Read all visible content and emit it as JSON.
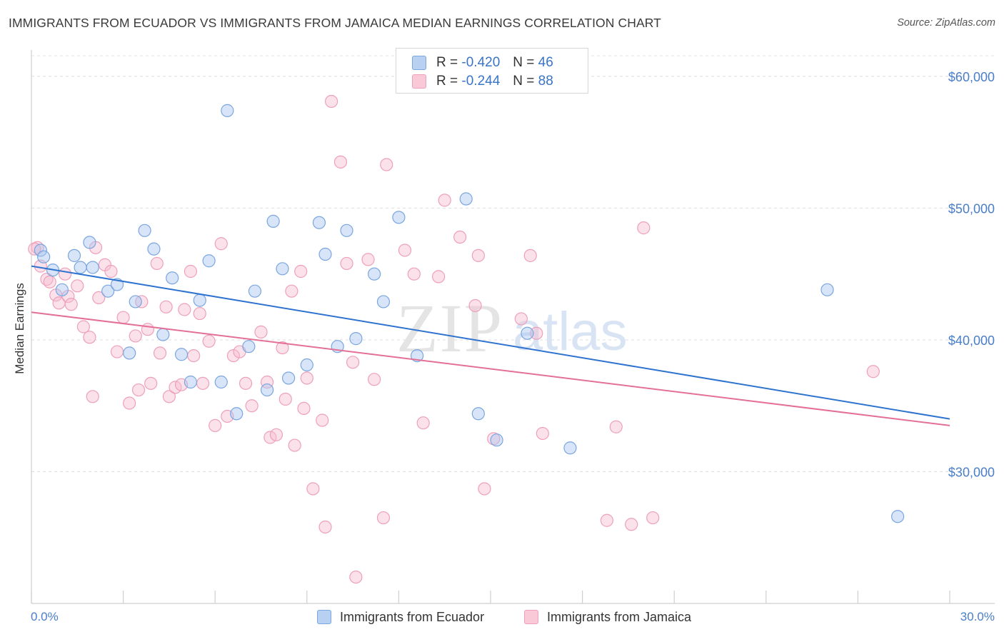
{
  "header": {
    "title": "IMMIGRANTS FROM ECUADOR VS IMMIGRANTS FROM JAMAICA MEDIAN EARNINGS CORRELATION CHART",
    "source": "Source: ZipAtlas.com"
  },
  "legend": {
    "rows": [
      {
        "r_label": "R =",
        "r_value": "-0.420",
        "n_label": "N =",
        "n_value": "46"
      },
      {
        "r_label": "R =",
        "r_value": "-0.244",
        "n_label": "N =",
        "n_value": "88"
      }
    ]
  },
  "watermark": {
    "zip": "ZIP",
    "atlas": "atlas"
  },
  "chart_data": {
    "type": "scatter",
    "title": "IMMIGRANTS FROM ECUADOR VS IMMIGRANTS FROM JAMAICA MEDIAN EARNINGS CORRELATION CHART",
    "xlabel": "",
    "ylabel": "Median Earnings",
    "xlim": [
      0,
      30
    ],
    "ylim": [
      20000,
      62000
    ],
    "x_tick_labels": [
      "0.0%",
      "30.0%"
    ],
    "y_ticks": [
      30000,
      40000,
      50000,
      60000
    ],
    "y_tick_labels": [
      "$30,000",
      "$40,000",
      "$50,000",
      "$60,000"
    ],
    "grid": true,
    "legend_position": "top-center",
    "colors": {
      "ecuador_fill": "#a9c6ef",
      "ecuador_stroke": "#7aa6e0",
      "ecuador_line": "#2f73d0",
      "jamaica_fill": "#f7bdd0",
      "jamaica_stroke": "#eea0bb",
      "jamaica_line": "#e46f97"
    },
    "series": [
      {
        "name": "Immigrants from Ecuador",
        "trend": {
          "x0": 0,
          "y0": 45600,
          "x1": 30,
          "y1": 34000
        },
        "points": [
          [
            0.3,
            46800
          ],
          [
            0.4,
            46300
          ],
          [
            0.7,
            45300
          ],
          [
            1.0,
            43800
          ],
          [
            1.4,
            46400
          ],
          [
            1.6,
            45500
          ],
          [
            1.9,
            47400
          ],
          [
            2.0,
            45500
          ],
          [
            2.5,
            43700
          ],
          [
            2.8,
            44200
          ],
          [
            3.2,
            39000
          ],
          [
            3.4,
            42900
          ],
          [
            3.7,
            48300
          ],
          [
            4.0,
            46900
          ],
          [
            4.3,
            40400
          ],
          [
            4.6,
            44700
          ],
          [
            4.9,
            38900
          ],
          [
            5.2,
            36800
          ],
          [
            5.5,
            43000
          ],
          [
            5.8,
            46000
          ],
          [
            6.2,
            36800
          ],
          [
            6.4,
            57400
          ],
          [
            6.7,
            34400
          ],
          [
            7.1,
            39500
          ],
          [
            7.3,
            43700
          ],
          [
            7.7,
            36200
          ],
          [
            7.9,
            49000
          ],
          [
            8.2,
            45400
          ],
          [
            8.4,
            37100
          ],
          [
            9.0,
            38100
          ],
          [
            9.4,
            48900
          ],
          [
            9.6,
            46500
          ],
          [
            10.0,
            39500
          ],
          [
            10.3,
            48300
          ],
          [
            10.6,
            40100
          ],
          [
            11.2,
            45000
          ],
          [
            11.5,
            42900
          ],
          [
            12.0,
            49300
          ],
          [
            12.6,
            38800
          ],
          [
            14.2,
            50700
          ],
          [
            14.6,
            34400
          ],
          [
            15.2,
            32400
          ],
          [
            16.2,
            40500
          ],
          [
            17.6,
            31800
          ],
          [
            26.0,
            43800
          ],
          [
            28.3,
            26600
          ]
        ]
      },
      {
        "name": "Immigrants from Jamaica",
        "trend": {
          "x0": 0,
          "y0": 42100,
          "x1": 30,
          "y1": 33500
        },
        "points": [
          [
            0.2,
            47000
          ],
          [
            0.3,
            45600
          ],
          [
            0.5,
            44600
          ],
          [
            0.6,
            44400
          ],
          [
            0.8,
            43400
          ],
          [
            0.9,
            42800
          ],
          [
            1.1,
            45000
          ],
          [
            1.2,
            43300
          ],
          [
            1.3,
            42700
          ],
          [
            1.5,
            44100
          ],
          [
            1.7,
            41000
          ],
          [
            1.9,
            40200
          ],
          [
            2.1,
            47000
          ],
          [
            2.2,
            43200
          ],
          [
            2.4,
            45700
          ],
          [
            2.6,
            45200
          ],
          [
            2.8,
            39100
          ],
          [
            3.0,
            41700
          ],
          [
            3.2,
            35200
          ],
          [
            3.4,
            40300
          ],
          [
            3.5,
            36200
          ],
          [
            3.6,
            42900
          ],
          [
            3.8,
            40800
          ],
          [
            3.9,
            36700
          ],
          [
            4.1,
            45800
          ],
          [
            4.2,
            39000
          ],
          [
            4.4,
            42500
          ],
          [
            4.5,
            35700
          ],
          [
            4.7,
            36400
          ],
          [
            4.9,
            36600
          ],
          [
            5.0,
            42300
          ],
          [
            5.2,
            45200
          ],
          [
            5.3,
            38800
          ],
          [
            5.5,
            42000
          ],
          [
            5.6,
            36700
          ],
          [
            5.8,
            39900
          ],
          [
            6.0,
            33500
          ],
          [
            6.2,
            47300
          ],
          [
            6.4,
            34200
          ],
          [
            6.6,
            38800
          ],
          [
            6.8,
            39100
          ],
          [
            7.0,
            36700
          ],
          [
            7.2,
            35000
          ],
          [
            7.5,
            40600
          ],
          [
            7.7,
            36800
          ],
          [
            7.8,
            32600
          ],
          [
            8.0,
            32800
          ],
          [
            8.2,
            39400
          ],
          [
            8.3,
            35500
          ],
          [
            8.5,
            43700
          ],
          [
            8.6,
            32000
          ],
          [
            8.8,
            45200
          ],
          [
            9.0,
            37100
          ],
          [
            9.2,
            28700
          ],
          [
            9.5,
            33900
          ],
          [
            9.6,
            25800
          ],
          [
            9.8,
            58100
          ],
          [
            10.1,
            53500
          ],
          [
            10.3,
            45800
          ],
          [
            10.5,
            38300
          ],
          [
            10.6,
            22000
          ],
          [
            11.0,
            46100
          ],
          [
            11.2,
            37000
          ],
          [
            11.5,
            26500
          ],
          [
            11.6,
            53300
          ],
          [
            12.2,
            46800
          ],
          [
            12.5,
            45000
          ],
          [
            13.3,
            44800
          ],
          [
            13.5,
            50600
          ],
          [
            14.0,
            47800
          ],
          [
            14.5,
            42600
          ],
          [
            14.6,
            46400
          ],
          [
            14.8,
            28700
          ],
          [
            15.1,
            32500
          ],
          [
            16.0,
            41600
          ],
          [
            16.3,
            46400
          ],
          [
            16.7,
            32900
          ],
          [
            18.8,
            26300
          ],
          [
            19.1,
            33400
          ],
          [
            19.6,
            26000
          ],
          [
            20.0,
            48500
          ],
          [
            20.3,
            26500
          ],
          [
            27.5,
            37600
          ],
          [
            16.5,
            40500
          ],
          [
            2.0,
            35700
          ],
          [
            8.9,
            34800
          ],
          [
            12.8,
            33700
          ],
          [
            0.1,
            46900
          ]
        ]
      }
    ]
  },
  "bottom_legend": {
    "items": [
      {
        "label": "Immigrants from Ecuador"
      },
      {
        "label": "Immigrants from Jamaica"
      }
    ]
  }
}
